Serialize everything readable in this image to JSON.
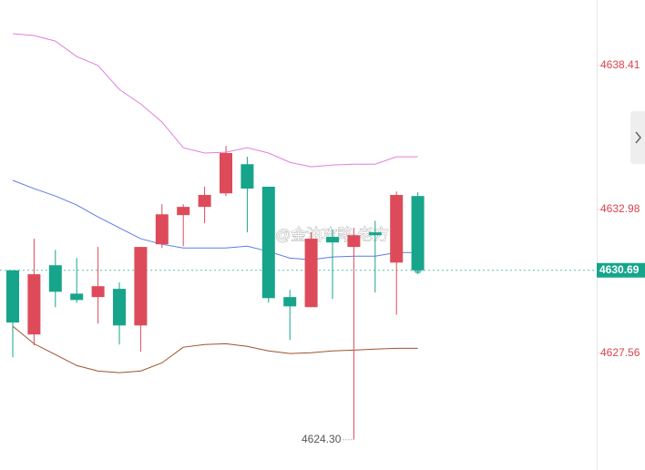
{
  "chart_data": {
    "type": "candlestick",
    "ylim": [
      4623.16,
      4640.88
    ],
    "yticks": [
      4638.41,
      4632.98,
      4627.56
    ],
    "up_color": "#dd4b5a",
    "down_color": "#16a58b",
    "candles": [
      {
        "open": 4630.69,
        "high": 4630.69,
        "low": 4627.41,
        "close": 4628.72
      },
      {
        "open": 4628.27,
        "high": 4631.88,
        "low": 4627.86,
        "close": 4630.54
      },
      {
        "open": 4630.88,
        "high": 4631.46,
        "low": 4629.3,
        "close": 4629.88
      },
      {
        "open": 4629.81,
        "high": 4631.15,
        "low": 4629.47,
        "close": 4629.57
      },
      {
        "open": 4629.68,
        "high": 4631.57,
        "low": 4628.68,
        "close": 4630.09
      },
      {
        "open": 4629.99,
        "high": 4630.23,
        "low": 4627.89,
        "close": 4628.61
      },
      {
        "open": 4628.61,
        "high": 4631.57,
        "low": 4627.62,
        "close": 4631.57
      },
      {
        "open": 4631.67,
        "high": 4633.18,
        "low": 4631.53,
        "close": 4632.8
      },
      {
        "open": 4632.77,
        "high": 4633.18,
        "low": 4631.6,
        "close": 4633.08
      },
      {
        "open": 4633.08,
        "high": 4633.84,
        "low": 4632.46,
        "close": 4633.53
      },
      {
        "open": 4633.59,
        "high": 4635.38,
        "low": 4633.49,
        "close": 4635.11
      },
      {
        "open": 4634.69,
        "high": 4634.97,
        "low": 4632.12,
        "close": 4633.77
      },
      {
        "open": 4633.84,
        "high": 4633.84,
        "low": 4629.47,
        "close": 4629.64
      },
      {
        "open": 4629.68,
        "high": 4629.95,
        "low": 4628.06,
        "close": 4629.33
      },
      {
        "open": 4629.3,
        "high": 4632.12,
        "low": 4629.3,
        "close": 4631.88
      },
      {
        "open": 4631.95,
        "high": 4632.22,
        "low": 4629.61,
        "close": 4631.74
      },
      {
        "open": 4631.57,
        "high": 4632.29,
        "low": 4624.3,
        "close": 4632.01
      },
      {
        "open": 4632.12,
        "high": 4632.56,
        "low": 4629.85,
        "close": 4632.01
      },
      {
        "open": 4630.98,
        "high": 4633.66,
        "low": 4629.02,
        "close": 4633.53
      },
      {
        "open": 4633.49,
        "high": 4633.63,
        "low": 4630.57,
        "close": 4630.69
      }
    ],
    "series": [
      {
        "color": "#e07fe0",
        "values": [
          4639.61,
          4639.54,
          4639.33,
          4638.75,
          4638.41,
          4637.51,
          4636.96,
          4636.28,
          4635.31,
          4635.11,
          4635.14,
          4635.31,
          4635.11,
          4634.76,
          4634.59,
          4634.66,
          4634.69,
          4634.69,
          4634.97,
          4634.97
        ]
      },
      {
        "color": "#5b7de6",
        "values": [
          4634.08,
          4633.77,
          4633.49,
          4633.15,
          4632.7,
          4632.29,
          4631.88,
          4631.67,
          4631.53,
          4631.53,
          4631.53,
          4631.6,
          4631.4,
          4631.15,
          4631.09,
          4631.19,
          4631.22,
          4631.22,
          4631.36,
          4631.36
        ]
      },
      {
        "color": "#a0522d",
        "values": [
          4628.58,
          4627.92,
          4627.51,
          4627.1,
          4626.89,
          4626.83,
          4626.89,
          4627.2,
          4627.79,
          4627.89,
          4627.92,
          4627.82,
          4627.65,
          4627.55,
          4627.58,
          4627.65,
          4627.68,
          4627.72,
          4627.75,
          4627.75
        ]
      }
    ],
    "last_price": 4630.69,
    "min_label": {
      "value": 4624.3,
      "label": "4624.30"
    },
    "watermark": "@金油攻略-老方"
  }
}
